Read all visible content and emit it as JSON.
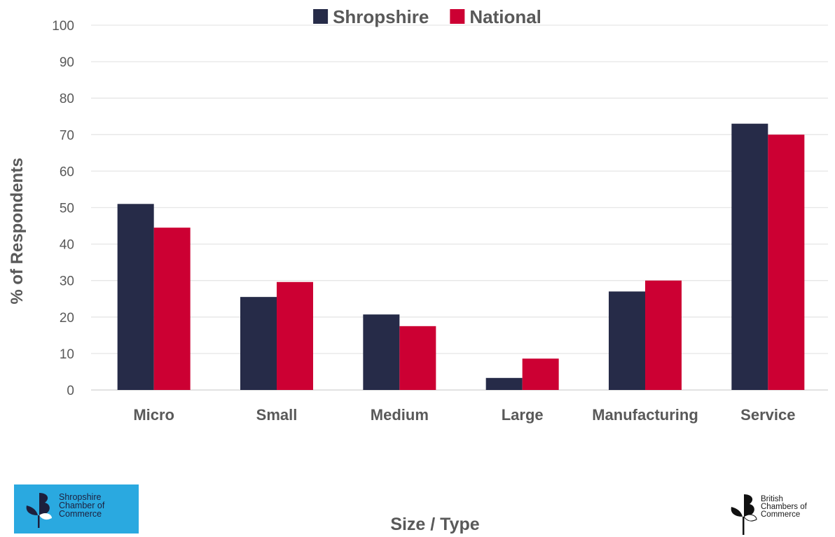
{
  "chart_data": {
    "type": "bar",
    "categories": [
      "Micro",
      "Small",
      "Medium",
      "Large",
      "Manufacturing",
      "Service"
    ],
    "series": [
      {
        "name": "Shropshire",
        "color": "#262b48",
        "values": [
          51,
          25.5,
          20.7,
          3.3,
          27,
          73
        ]
      },
      {
        "name": "National",
        "color": "#cc0033",
        "values": [
          44.5,
          29.6,
          17.5,
          8.6,
          30,
          70
        ]
      }
    ],
    "xlabel": "Size / Type",
    "ylabel": "% of Respondents",
    "ylim": [
      0,
      100
    ],
    "yticks": [
      0,
      10,
      20,
      30,
      40,
      50,
      60,
      70,
      80,
      90,
      100
    ],
    "grid": true,
    "legend_position": "top-center"
  },
  "logos": {
    "left": {
      "lines": [
        "Shropshire",
        "Chamber of",
        "Commerce"
      ],
      "background": "#2aa9e0",
      "icon": "chamber-leaf-icon"
    },
    "right": {
      "lines": [
        "British",
        "Chambers of",
        "Commerce"
      ],
      "icon": "chamber-leaf-icon"
    }
  }
}
